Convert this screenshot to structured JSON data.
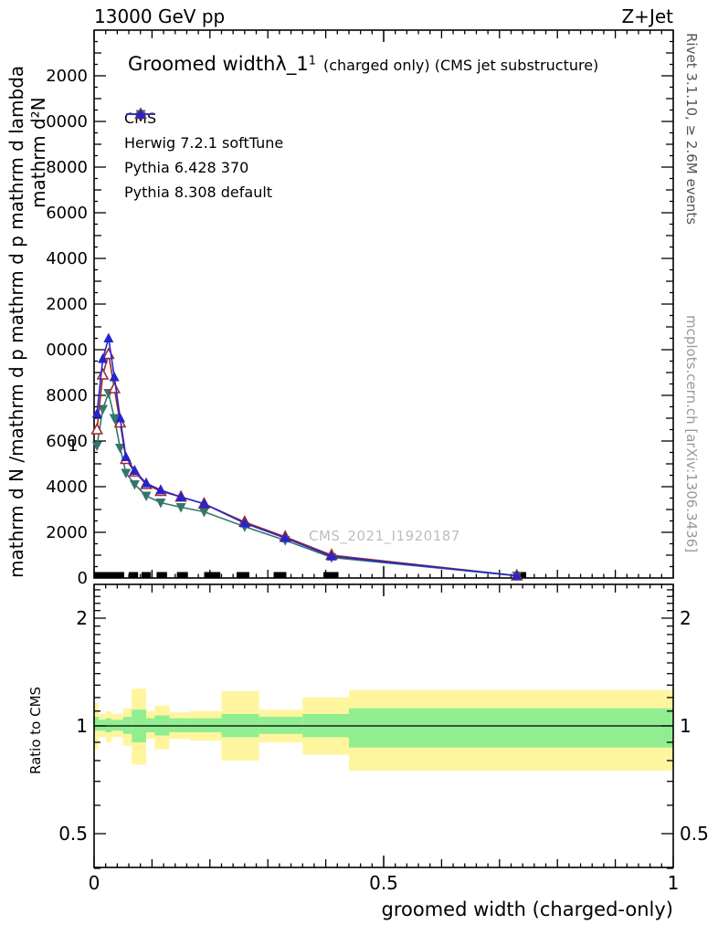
{
  "header": {
    "left_label": "13000 GeV pp",
    "right_label": "Z+Jet"
  },
  "title": {
    "prefix": "Groomed width",
    "symbol": "λ_1",
    "superscript": "1",
    "qualifier": "(charged only) (CMS jet substructure)"
  },
  "side_labels": {
    "rivet": "Rivet 3.1.10, ≥ 2.6M events",
    "mcplots": "mcplots.cern.ch [arXiv:1306.3436]",
    "watermark": "CMS_2021_I1920187",
    "y_axis_outer": "mathrm d N /mathrm d p mathrm d p mathrm d lambda",
    "y_axis_inner": "mathrm d²N",
    "y_axis_one": "1",
    "ratio_y_label": "Ratio to CMS",
    "x_axis_label": "groomed width (charged-only)"
  },
  "chart_data": {
    "type": "line",
    "title": "Groomed width λ_1^1 (charged only) (CMS jet substructure)",
    "xlabel": "groomed width (charged-only)",
    "ylabel": "d²N/dp dλ (axis label text mangled in source image)",
    "xlim": [
      0,
      1
    ],
    "ylim": [
      0,
      24000
    ],
    "grid": false,
    "legend_position": "top-left",
    "x_major_ticks": [
      0,
      0.5,
      1
    ],
    "x_tick_labels": [
      "0",
      "0.5",
      "1"
    ],
    "y_major_tick_values": [
      0,
      2000,
      4000,
      6000,
      8000,
      10000,
      12000,
      14000,
      16000,
      18000,
      20000,
      22000
    ],
    "y_tick_labels_displayed": [
      "0",
      "2000",
      "4000",
      "6000",
      "8000",
      "0000",
      "2000",
      "4000",
      "6000",
      "8000",
      "0000",
      "2000"
    ],
    "colors": {
      "band_yellow": "#fff59e",
      "band_green": "#90ee90",
      "frame": "#000000"
    },
    "x": [
      0.005,
      0.015,
      0.025,
      0.035,
      0.045,
      0.055,
      0.07,
      0.09,
      0.115,
      0.15,
      0.19,
      0.26,
      0.33,
      0.41,
      0.73
    ],
    "series": [
      {
        "name": "CMS",
        "color": "#000000",
        "marker": "square-filled",
        "line": false,
        "value_approx": 0,
        "bins": [
          [
            0.0,
            0.052
          ],
          [
            0.06,
            0.076
          ],
          [
            0.082,
            0.098
          ],
          [
            0.108,
            0.126
          ],
          [
            0.143,
            0.162
          ],
          [
            0.19,
            0.218
          ],
          [
            0.246,
            0.268
          ],
          [
            0.31,
            0.332
          ],
          [
            0.396,
            0.422
          ],
          [
            0.728,
            0.746
          ]
        ]
      },
      {
        "name": "Herwig 7.2.1 softTune",
        "color": "#35756e",
        "marker": "triangle-down-filled",
        "line": true,
        "values": [
          5800,
          7400,
          8100,
          7000,
          5700,
          4600,
          4100,
          3600,
          3300,
          3100,
          2900,
          2250,
          1650,
          900,
          95
        ]
      },
      {
        "name": "Pythia 6.428 370",
        "color": "#9e2b2b",
        "marker": "triangle-up-open",
        "line": true,
        "values": [
          6500,
          8900,
          9800,
          8300,
          6800,
          5200,
          4650,
          4100,
          3800,
          3550,
          3250,
          2450,
          1800,
          1000,
          100
        ]
      },
      {
        "name": "Pythia 8.308 default",
        "color": "#2525cf",
        "marker": "triangle-up-filled",
        "line": true,
        "values": [
          7200,
          9600,
          10500,
          8800,
          7000,
          5300,
          4700,
          4150,
          3850,
          3550,
          3250,
          2400,
          1750,
          950,
          100
        ]
      }
    ],
    "ratio": {
      "ylabel": "Ratio to CMS",
      "yscale": "log",
      "ylim": [
        0.4,
        2.5
      ],
      "y_major_ticks": [
        0.5,
        1,
        2
      ],
      "y_tick_labels": [
        "0.5",
        "1",
        "2"
      ],
      "unity_line": 1,
      "bands": {
        "yellow": [
          [
            0.0,
            0.008,
            0.86,
            1.16
          ],
          [
            0.008,
            0.02,
            0.93,
            1.08
          ],
          [
            0.02,
            0.03,
            0.9,
            1.1
          ],
          [
            0.03,
            0.05,
            0.93,
            1.08
          ],
          [
            0.05,
            0.065,
            0.88,
            1.12
          ],
          [
            0.065,
            0.09,
            0.78,
            1.27
          ],
          [
            0.09,
            0.105,
            0.92,
            1.1
          ],
          [
            0.105,
            0.13,
            0.86,
            1.14
          ],
          [
            0.13,
            0.165,
            0.92,
            1.09
          ],
          [
            0.165,
            0.22,
            0.91,
            1.1
          ],
          [
            0.22,
            0.285,
            0.8,
            1.25
          ],
          [
            0.285,
            0.36,
            0.9,
            1.11
          ],
          [
            0.36,
            0.44,
            0.83,
            1.2
          ],
          [
            0.44,
            1.0,
            0.75,
            1.26
          ]
        ],
        "green": [
          [
            0.0,
            0.008,
            0.97,
            1.06
          ],
          [
            0.008,
            0.02,
            0.97,
            1.04
          ],
          [
            0.02,
            0.03,
            0.96,
            1.05
          ],
          [
            0.03,
            0.05,
            0.97,
            1.04
          ],
          [
            0.05,
            0.065,
            0.95,
            1.06
          ],
          [
            0.065,
            0.09,
            0.9,
            1.11
          ],
          [
            0.09,
            0.105,
            0.96,
            1.05
          ],
          [
            0.105,
            0.13,
            0.94,
            1.07
          ],
          [
            0.13,
            0.165,
            0.96,
            1.05
          ],
          [
            0.165,
            0.22,
            0.96,
            1.05
          ],
          [
            0.22,
            0.285,
            0.93,
            1.08
          ],
          [
            0.285,
            0.36,
            0.95,
            1.06
          ],
          [
            0.36,
            0.44,
            0.93,
            1.08
          ],
          [
            0.44,
            1.0,
            0.87,
            1.12
          ]
        ]
      }
    }
  }
}
